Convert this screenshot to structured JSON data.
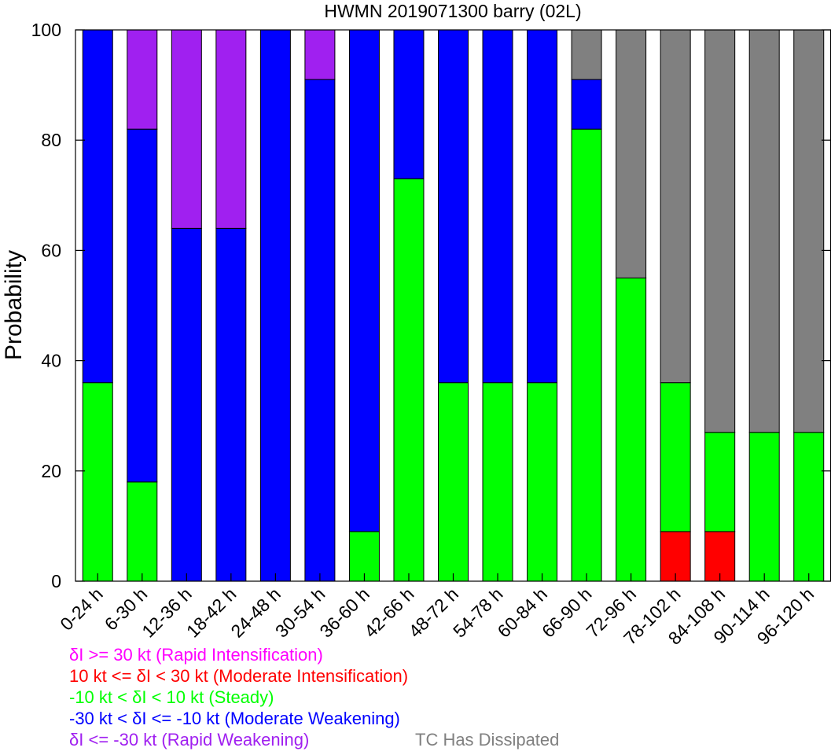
{
  "chart_data": {
    "type": "bar",
    "stacked": true,
    "title": "HWMN 2019071300 barry (02L)",
    "ylabel": "Probability",
    "xlabel": "",
    "ylim": [
      0,
      100
    ],
    "yticks": [
      0,
      20,
      40,
      60,
      80,
      100
    ],
    "grid": false,
    "categories": [
      "0-24 h",
      "6-30 h",
      "12-36 h",
      "18-42 h",
      "24-48 h",
      "30-54 h",
      "36-60 h",
      "42-66 h",
      "48-72 h",
      "54-78 h",
      "60-84 h",
      "66-90 h",
      "72-96 h",
      "78-102 h",
      "84-108 h",
      "90-114 h",
      "96-120 h"
    ],
    "series": [
      {
        "key": "mi",
        "color": "#ff0000",
        "values": [
          0,
          0,
          0,
          0,
          0,
          0,
          0,
          0,
          0,
          0,
          0,
          0,
          0,
          9,
          9,
          0,
          0
        ]
      },
      {
        "key": "st",
        "color": "#00ff00",
        "values": [
          36,
          18,
          0,
          0,
          0,
          0,
          9,
          73,
          36,
          36,
          36,
          82,
          55,
          27,
          18,
          27,
          27
        ]
      },
      {
        "key": "mw",
        "color": "#0000ff",
        "values": [
          64,
          64,
          64,
          64,
          100,
          91,
          91,
          27,
          64,
          64,
          64,
          9,
          0,
          0,
          0,
          0,
          0
        ]
      },
      {
        "key": "rw",
        "color": "#a020f0",
        "values": [
          0,
          18,
          36,
          36,
          0,
          9,
          0,
          0,
          0,
          0,
          0,
          0,
          0,
          0,
          0,
          0,
          0
        ]
      },
      {
        "key": "dis",
        "color": "#808080",
        "values": [
          0,
          0,
          0,
          0,
          0,
          0,
          0,
          0,
          0,
          0,
          0,
          9,
          45,
          64,
          73,
          73,
          73
        ]
      }
    ],
    "legend": {
      "ri": {
        "text": "δI >= 30 kt (Rapid Intensification)",
        "color": "#ff00ff"
      },
      "mi": {
        "text": "10 kt <= δI < 30 kt (Moderate Intensification)",
        "color": "#ff0000"
      },
      "st": {
        "text": "-10 kt < δI < 10 kt (Steady)",
        "color": "#00ff00"
      },
      "mw": {
        "text": "-30 kt < δI <= -10 kt (Moderate Weakening)",
        "color": "#0000ff"
      },
      "rw": {
        "text": "δI <= -30 kt (Rapid Weakening)",
        "color": "#a020f0"
      },
      "dis": {
        "text": "TC Has Dissipated",
        "color": "#808080"
      }
    }
  }
}
